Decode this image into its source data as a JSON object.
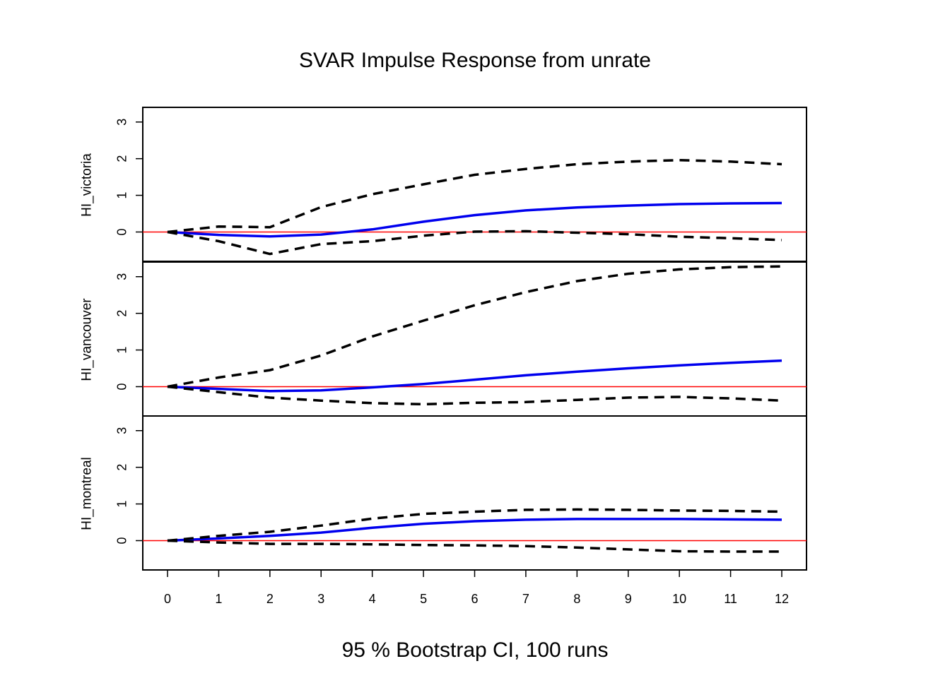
{
  "chart_data": {
    "type": "line",
    "title": "SVAR Impulse Response from unrate",
    "footer": "95 % Bootstrap CI,  100 runs",
    "x": [
      0,
      1,
      2,
      3,
      4,
      5,
      6,
      7,
      8,
      9,
      10,
      11,
      12
    ],
    "xlim": [
      0,
      12
    ],
    "ylim": [
      -0.8,
      3.4
    ],
    "yticks": [
      0,
      1,
      2,
      3
    ],
    "grid": false,
    "colors": {
      "response": "#0000ee",
      "ci": "#000000",
      "zero_line": "#ff0000"
    },
    "panels": [
      {
        "name": "HI_victoria",
        "series": [
          {
            "name": "response",
            "values": [
              0,
              -0.08,
              -0.12,
              -0.07,
              0.07,
              0.28,
              0.46,
              0.59,
              0.67,
              0.72,
              0.76,
              0.78,
              0.79
            ]
          },
          {
            "name": "upper",
            "values": [
              0,
              0.15,
              0.13,
              0.68,
              1.03,
              1.3,
              1.56,
              1.72,
              1.85,
              1.92,
              1.96,
              1.92,
              1.85
            ]
          },
          {
            "name": "lower",
            "values": [
              0,
              -0.25,
              -0.6,
              -0.33,
              -0.25,
              -0.1,
              0.01,
              0.02,
              -0.02,
              -0.06,
              -0.13,
              -0.17,
              -0.22
            ]
          }
        ]
      },
      {
        "name": "HI_vancouver",
        "series": [
          {
            "name": "response",
            "values": [
              0,
              -0.06,
              -0.12,
              -0.1,
              -0.02,
              0.07,
              0.19,
              0.31,
              0.41,
              0.5,
              0.58,
              0.65,
              0.71
            ]
          },
          {
            "name": "upper",
            "values": [
              0,
              0.25,
              0.45,
              0.85,
              1.37,
              1.8,
              2.22,
              2.58,
              2.88,
              3.08,
              3.2,
              3.26,
              3.28
            ]
          },
          {
            "name": "lower",
            "values": [
              0,
              -0.15,
              -0.3,
              -0.38,
              -0.45,
              -0.48,
              -0.44,
              -0.42,
              -0.36,
              -0.3,
              -0.28,
              -0.32,
              -0.38
            ]
          }
        ]
      },
      {
        "name": "HI_montreal",
        "series": [
          {
            "name": "response",
            "values": [
              0,
              0.06,
              0.13,
              0.22,
              0.35,
              0.46,
              0.53,
              0.57,
              0.59,
              0.59,
              0.59,
              0.58,
              0.57
            ]
          },
          {
            "name": "upper",
            "values": [
              0,
              0.13,
              0.24,
              0.41,
              0.6,
              0.73,
              0.79,
              0.84,
              0.85,
              0.84,
              0.82,
              0.81,
              0.79
            ]
          },
          {
            "name": "lower",
            "values": [
              0,
              -0.05,
              -0.09,
              -0.09,
              -0.1,
              -0.12,
              -0.13,
              -0.15,
              -0.19,
              -0.24,
              -0.29,
              -0.3,
              -0.3
            ]
          }
        ]
      }
    ]
  }
}
